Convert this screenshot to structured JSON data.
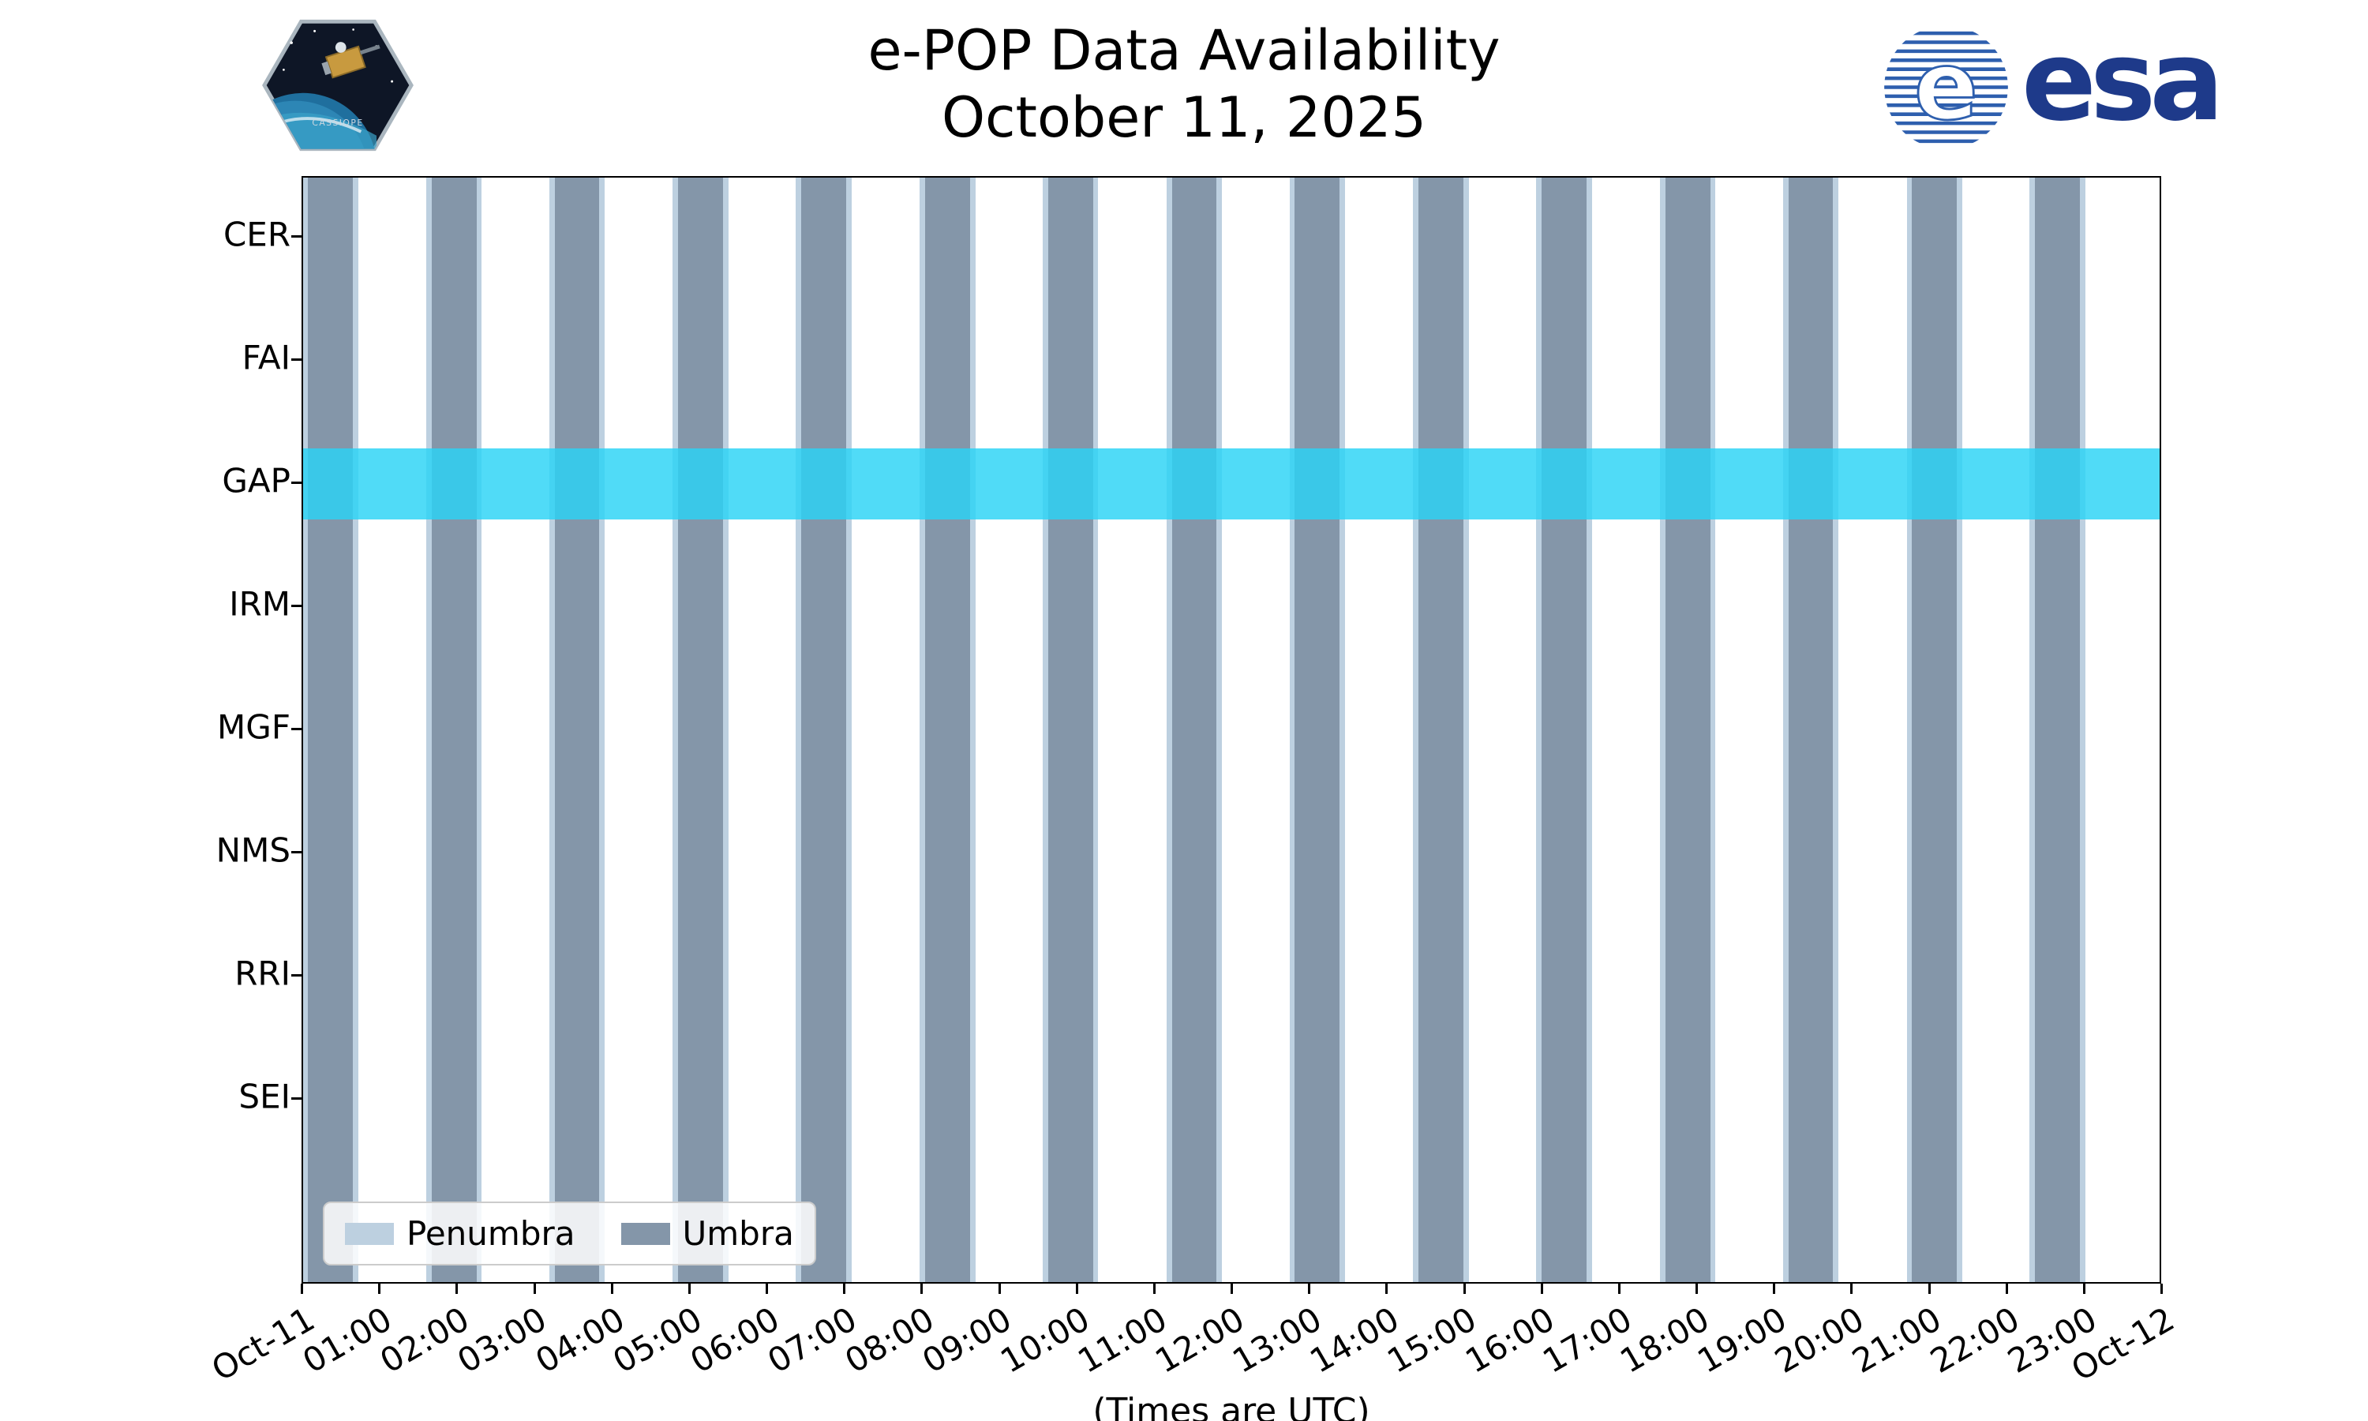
{
  "header": {
    "title_line1": "e-POP Data Availability",
    "title_line2": "October 11, 2025",
    "cassiope_patch_label": "CASSIOPE",
    "esa_logo_text": "esa"
  },
  "footer": {
    "note": "(Times are UTC)"
  },
  "legend": {
    "items": [
      {
        "label": "Penumbra",
        "color": "#bdd0e0"
      },
      {
        "label": "Umbra",
        "color": "#8496a9"
      }
    ]
  },
  "icons": {
    "cassiope_patch": "hexagonal-mission-patch",
    "esa_emblem": "esa-globe-emblem"
  },
  "chart_data": {
    "type": "timeline",
    "title": "e-POP Data Availability",
    "subtitle": "October 11, 2025",
    "rows": [
      "CER",
      "FAI",
      "GAP",
      "IRM",
      "MGF",
      "NMS",
      "RRI",
      "SEI"
    ],
    "x_axis": {
      "range_hours": [
        0,
        24
      ],
      "tick_labels": [
        "Oct-11",
        "01:00",
        "02:00",
        "03:00",
        "04:00",
        "05:00",
        "06:00",
        "07:00",
        "08:00",
        "09:00",
        "10:00",
        "11:00",
        "12:00",
        "13:00",
        "14:00",
        "15:00",
        "16:00",
        "17:00",
        "18:00",
        "19:00",
        "20:00",
        "21:00",
        "22:00",
        "23:00",
        "Oct-12"
      ],
      "note": "(Times are UTC)"
    },
    "umbra_intervals_hours": [
      [
        0.06,
        0.64
      ],
      [
        1.66,
        2.24
      ],
      [
        3.25,
        3.83
      ],
      [
        4.85,
        5.43
      ],
      [
        6.44,
        7.02
      ],
      [
        8.04,
        8.62
      ],
      [
        9.63,
        10.21
      ],
      [
        11.23,
        11.81
      ],
      [
        12.82,
        13.4
      ],
      [
        14.42,
        15.0
      ],
      [
        16.01,
        16.59
      ],
      [
        17.61,
        18.19
      ],
      [
        19.2,
        19.78
      ],
      [
        20.8,
        21.38
      ],
      [
        22.39,
        22.97
      ]
    ],
    "penumbra_margin_hours": 0.07,
    "gap_band": {
      "row": "GAP",
      "interval_hours": [
        0,
        24
      ]
    },
    "colors": {
      "umbra": "#8496a9",
      "penumbra": "#bdd0e0",
      "gap_band": "#29d3f5",
      "gap_band_alpha": 0.82,
      "spine": "#000000",
      "esa_blue": "#1e3a8a"
    },
    "legend_position": "lower-left",
    "grid": false
  }
}
